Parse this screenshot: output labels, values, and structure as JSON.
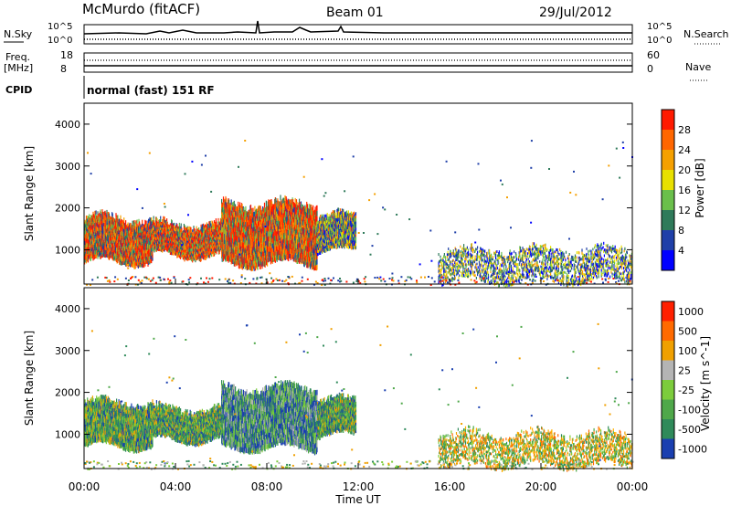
{
  "header": {
    "station": "McMurdo (fitACF)",
    "beam": "Beam 01",
    "date": "29/Jul/2012"
  },
  "housekeeping": {
    "nsky_label": "N.Sky",
    "nsky_ticks": [
      "10^5",
      "10^0"
    ],
    "nsearch_label": "N.Search",
    "nsearch_ticks": [
      "10^5",
      "10^0"
    ],
    "freq_label_1": "Freq.",
    "freq_label_2": "[MHz]",
    "freq_ticks": [
      "18",
      "8"
    ],
    "nave_label": "Nave",
    "nave_ticks": [
      "60",
      "0"
    ],
    "cpid_label": "CPID",
    "cpid_text": "normal (fast) 151 RF"
  },
  "chart_data": [
    {
      "type": "heatmap",
      "name": "power-panel",
      "ylabel": "Slant Range [km]",
      "yticks": [
        "1000",
        "2000",
        "3000",
        "4000"
      ],
      "ylim": [
        180,
        4500
      ],
      "xlim": [
        0,
        24
      ],
      "colorbar_label": "Power [dB]",
      "colorbar_ticks": [
        "4",
        "8",
        "12",
        "16",
        "20",
        "24",
        "28"
      ],
      "colorbar_colors": [
        "#0000ff",
        "#1f3fa8",
        "#2f7a5a",
        "#6abf4b",
        "#e8e000",
        "#f5a000",
        "#ff6600",
        "#ff1a00"
      ],
      "scatter_echo_bands": [
        {
          "t_start": 0.0,
          "t_end": 3.0,
          "range_low": 650,
          "range_high": 1850,
          "level": "high"
        },
        {
          "t_start": 3.0,
          "t_end": 6.0,
          "range_low": 800,
          "range_high": 1700,
          "level": "high"
        },
        {
          "t_start": 6.0,
          "t_end": 10.2,
          "range_low": 600,
          "range_high": 2200,
          "level": "high"
        },
        {
          "t_start": 10.2,
          "t_end": 11.9,
          "range_low": 900,
          "range_high": 1900,
          "level": "mid"
        },
        {
          "t_start": 15.5,
          "t_end": 24.0,
          "range_low": 200,
          "range_high": 1100,
          "level": "low"
        }
      ]
    },
    {
      "type": "heatmap",
      "name": "velocity-panel",
      "ylabel": "Slant Range [km]",
      "yticks": [
        "1000",
        "2000",
        "3000",
        "4000"
      ],
      "ylim": [
        180,
        4500
      ],
      "xlim": [
        0,
        24
      ],
      "xticks": [
        "00:00",
        "04:00",
        "08:00",
        "12:00",
        "16:00",
        "20:00",
        "00:00"
      ],
      "xlabel": "Time UT",
      "colorbar_label": "Velocity [m s^-1]",
      "colorbar_ticks": [
        "1000",
        "500",
        "100",
        "25",
        "-25",
        "-100",
        "-500",
        "-1000"
      ],
      "colorbar_colors": [
        "#1a3fb0",
        "#2f8a5a",
        "#4fa84a",
        "#7ccc3c",
        "#b4b4b4",
        "#f0a000",
        "#ff6a00",
        "#ff2000"
      ],
      "scatter_echo_bands": [
        {
          "t_start": 0.0,
          "t_end": 3.0,
          "range_low": 650,
          "range_high": 1850,
          "level": "green"
        },
        {
          "t_start": 3.0,
          "t_end": 6.0,
          "range_low": 800,
          "range_high": 1700,
          "level": "green"
        },
        {
          "t_start": 6.0,
          "t_end": 10.2,
          "range_low": 600,
          "range_high": 2200,
          "level": "blue"
        },
        {
          "t_start": 10.2,
          "t_end": 11.9,
          "range_low": 900,
          "range_high": 1900,
          "level": "green"
        },
        {
          "t_start": 15.5,
          "t_end": 24.0,
          "range_low": 200,
          "range_high": 1100,
          "level": "orange"
        }
      ]
    }
  ]
}
